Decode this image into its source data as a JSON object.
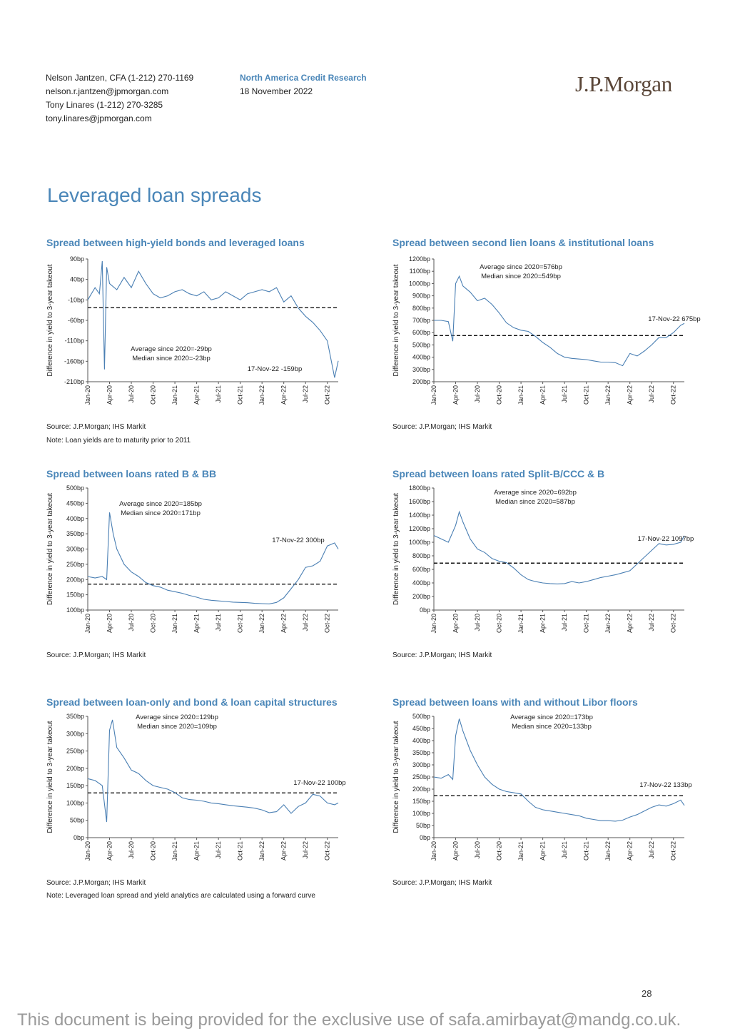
{
  "header": {
    "authors": [
      "Nelson Jantzen, CFA (1-212) 270-1169",
      "nelson.r.jantzen@jpmorgan.com",
      "Tony Linares (1-212) 270-3285",
      "tony.linares@jpmorgan.com"
    ],
    "department": "North America Credit Research",
    "date": "18 November 2022",
    "logo_text": "J.P.Morgan"
  },
  "section_title": "Leveraged loan spreads",
  "page_number": "28",
  "footer_text": "This document is being provided for the exclusive use of safa.amirbayat@mandg.co.uk.",
  "colors": {
    "accent": "#4a86b8",
    "line": "#4a7fb3",
    "logo": "#5a4638",
    "footer": "#9a9a9a"
  },
  "chart_data": [
    {
      "type": "line",
      "title": "Spread between high-yield bonds and leveraged loans",
      "ylabel": "Difference in yield to 3-year takeout",
      "ylim": [
        -210,
        90
      ],
      "yticks": [
        90,
        40,
        -10,
        -60,
        -110,
        -160,
        -210
      ],
      "ytick_labels": [
        "90bp",
        "40bp",
        "-10bp",
        "-60bp",
        "-110bp",
        "-160bp",
        "-210bp"
      ],
      "xticks": [
        "Jan-20",
        "Apr-20",
        "Jul-20",
        "Oct-20",
        "Jan-21",
        "Apr-21",
        "Jul-21",
        "Oct-21",
        "Jan-22",
        "Apr-22",
        "Jul-22",
        "Oct-22"
      ],
      "x": [
        0,
        1,
        1.6,
        2,
        2.3,
        2.6,
        3,
        4,
        5,
        6,
        7,
        8,
        9,
        10,
        11,
        12,
        13,
        14,
        15,
        16,
        17,
        18,
        19,
        20,
        21,
        22,
        23,
        24,
        25,
        26,
        27,
        28,
        29,
        30,
        31,
        32,
        33,
        34,
        34.5
      ],
      "y": [
        -10,
        20,
        5,
        85,
        -180,
        70,
        30,
        15,
        45,
        20,
        60,
        30,
        5,
        -5,
        0,
        10,
        15,
        5,
        0,
        10,
        -10,
        -5,
        10,
        0,
        -10,
        5,
        10,
        15,
        10,
        20,
        -15,
        0,
        -30,
        -50,
        -65,
        -85,
        -110,
        -200,
        -159
      ],
      "average_line": -29,
      "annotations": [
        "Average since 2020=-29bp",
        "Median since 2020=-23bp",
        "17-Nov-22 -159bp"
      ],
      "source": "Source: J.P.Morgan; IHS Markit",
      "note": "Note: Loan yields are to maturity prior to 2011"
    },
    {
      "type": "line",
      "title": "Spread between second lien loans & institutional loans",
      "ylabel": "Difference in yield to 3-year takeout",
      "ylim": [
        200,
        1200
      ],
      "yticks": [
        1200,
        1100,
        1000,
        900,
        800,
        700,
        600,
        500,
        400,
        300,
        200
      ],
      "ytick_labels": [
        "1200bp",
        "1100bp",
        "1000bp",
        "900bp",
        "800bp",
        "700bp",
        "600bp",
        "500bp",
        "400bp",
        "300bp",
        "200bp"
      ],
      "xticks": [
        "Jan-20",
        "Apr-20",
        "Jul-20",
        "Oct-20",
        "Jan-21",
        "Apr-21",
        "Jul-21",
        "Oct-21",
        "Jan-22",
        "Apr-22",
        "Jul-22",
        "Oct-22"
      ],
      "x": [
        0,
        1,
        2,
        2.6,
        3,
        3.5,
        4,
        5,
        6,
        7,
        8,
        9,
        10,
        11,
        12,
        13,
        14,
        15,
        16,
        17,
        18,
        19,
        20,
        21,
        22,
        23,
        24,
        25,
        26,
        27,
        28,
        29,
        30,
        31,
        32,
        33,
        34,
        34.5
      ],
      "y": [
        700,
        700,
        690,
        530,
        1000,
        1060,
        980,
        930,
        860,
        880,
        830,
        760,
        680,
        640,
        620,
        610,
        570,
        520,
        480,
        430,
        400,
        390,
        385,
        380,
        370,
        360,
        360,
        355,
        330,
        430,
        410,
        450,
        500,
        560,
        560,
        600,
        660,
        675
      ],
      "average_line": 576,
      "annotations": [
        "Average since 2020=576bp",
        "Median since 2020=549bp",
        "17-Nov-22 675bp"
      ],
      "source": "Source: J.P.Morgan; IHS Markit",
      "note": ""
    },
    {
      "type": "line",
      "title": "Spread between loans rated B & BB",
      "ylabel": "Difference in yield to 3-year takeout",
      "ylim": [
        100,
        500
      ],
      "yticks": [
        500,
        450,
        400,
        350,
        300,
        250,
        200,
        150,
        100
      ],
      "ytick_labels": [
        "500bp",
        "450bp",
        "400bp",
        "350bp",
        "300bp",
        "250bp",
        "200bp",
        "150bp",
        "100bp"
      ],
      "xticks": [
        "Jan-20",
        "Apr-20",
        "Jul-20",
        "Oct-20",
        "Jan-21",
        "Apr-21",
        "Jul-21",
        "Oct-21",
        "Jan-22",
        "Apr-22",
        "Jul-22",
        "Oct-22"
      ],
      "x": [
        0,
        1,
        2,
        2.6,
        3,
        3.5,
        4,
        5,
        6,
        7,
        8,
        9,
        10,
        11,
        12,
        13,
        14,
        15,
        16,
        17,
        18,
        19,
        20,
        21,
        22,
        23,
        24,
        25,
        26,
        27,
        28,
        29,
        30,
        31,
        32,
        33,
        34,
        34.5
      ],
      "y": [
        210,
        205,
        210,
        200,
        420,
        350,
        300,
        250,
        225,
        210,
        190,
        180,
        175,
        165,
        160,
        155,
        148,
        142,
        135,
        132,
        130,
        128,
        126,
        125,
        124,
        122,
        121,
        120,
        125,
        140,
        170,
        200,
        240,
        245,
        260,
        310,
        320,
        300
      ],
      "average_line": 185,
      "annotations": [
        "Average since 2020=185bp",
        "Median since 2020=171bp",
        "17-Nov-22 300bp"
      ],
      "source": "Source: J.P.Morgan; IHS Markit",
      "note": ""
    },
    {
      "type": "line",
      "title": "Spread between loans rated Split-B/CCC & B",
      "ylabel": "Difference in yield to 3-year takeout",
      "ylim": [
        0,
        1800
      ],
      "yticks": [
        1800,
        1600,
        1400,
        1200,
        1000,
        800,
        600,
        400,
        200,
        0
      ],
      "ytick_labels": [
        "1800bp",
        "1600bp",
        "1400bp",
        "1200bp",
        "1000bp",
        "800bp",
        "600bp",
        "400bp",
        "200bp",
        "0bp"
      ],
      "xticks": [
        "Jan-20",
        "Apr-20",
        "Jul-20",
        "Oct-20",
        "Jan-21",
        "Apr-21",
        "Jul-21",
        "Oct-21",
        "Jan-22",
        "Apr-22",
        "Jul-22",
        "Oct-22"
      ],
      "x": [
        0,
        1,
        2,
        3,
        3.5,
        4,
        5,
        6,
        7,
        8,
        9,
        10,
        11,
        12,
        13,
        14,
        15,
        16,
        17,
        18,
        19,
        20,
        21,
        22,
        23,
        24,
        25,
        26,
        27,
        28,
        29,
        30,
        31,
        32,
        33,
        34,
        34.5
      ],
      "y": [
        1100,
        1050,
        1000,
        1250,
        1450,
        1300,
        1050,
        900,
        850,
        760,
        720,
        700,
        620,
        520,
        450,
        420,
        400,
        390,
        385,
        390,
        420,
        400,
        420,
        450,
        480,
        500,
        520,
        550,
        580,
        680,
        780,
        880,
        980,
        960,
        970,
        1000,
        1097
      ],
      "average_line": 692,
      "annotations": [
        "Average since 2020=692bp",
        "Median since 2020=587bp",
        "17-Nov-22 1097bp"
      ],
      "source": "Source: J.P.Morgan; IHS Markit",
      "note": ""
    },
    {
      "type": "line",
      "title": "Spread between loan-only and bond & loan capital structures",
      "ylabel": "Difference in yield to 3-year takeout",
      "ylim": [
        0,
        350
      ],
      "yticks": [
        350,
        300,
        250,
        200,
        150,
        100,
        50,
        0
      ],
      "ytick_labels": [
        "350bp",
        "300bp",
        "250bp",
        "200bp",
        "150bp",
        "100bp",
        "50bp",
        "0bp"
      ],
      "xticks": [
        "Jan-20",
        "Apr-20",
        "Jul-20",
        "Oct-20",
        "Jan-21",
        "Apr-21",
        "Jul-21",
        "Oct-21",
        "Jan-22",
        "Apr-22",
        "Jul-22",
        "Oct-22"
      ],
      "x": [
        0,
        1,
        2,
        2.6,
        3,
        3.4,
        4,
        5,
        6,
        7,
        8,
        9,
        10,
        11,
        12,
        13,
        14,
        15,
        16,
        17,
        18,
        19,
        20,
        21,
        22,
        23,
        24,
        25,
        26,
        27,
        28,
        29,
        30,
        31,
        32,
        33,
        34,
        34.5
      ],
      "y": [
        170,
        165,
        150,
        45,
        310,
        340,
        260,
        230,
        195,
        185,
        165,
        150,
        145,
        140,
        130,
        115,
        110,
        108,
        105,
        100,
        98,
        95,
        92,
        90,
        88,
        85,
        80,
        72,
        75,
        95,
        70,
        90,
        100,
        125,
        120,
        100,
        95,
        100
      ],
      "average_line": 129,
      "annotations": [
        "Average since 2020=129bp",
        "Median since 2020=109bp",
        "17-Nov-22 100bp"
      ],
      "source": "Source: J.P.Morgan; IHS Markit",
      "note": "Note: Leveraged loan spread and yield analytics are calculated using a forward curve"
    },
    {
      "type": "line",
      "title": "Spread between loans with and without Libor floors",
      "ylabel": "Difference in yield to 3-year takeout",
      "ylim": [
        0,
        500
      ],
      "yticks": [
        500,
        450,
        400,
        350,
        300,
        250,
        200,
        150,
        100,
        50,
        0
      ],
      "ytick_labels": [
        "500bp",
        "450bp",
        "400bp",
        "350bp",
        "300bp",
        "250bp",
        "200bp",
        "150bp",
        "100bp",
        "50bp",
        "0bp"
      ],
      "xticks": [
        "Jan-20",
        "Apr-20",
        "Jul-20",
        "Oct-20",
        "Jan-21",
        "Apr-21",
        "Jul-21",
        "Oct-21",
        "Jan-22",
        "Apr-22",
        "Jul-22",
        "Oct-22"
      ],
      "x": [
        0,
        1,
        2,
        2.6,
        3,
        3.5,
        4,
        5,
        6,
        7,
        8,
        9,
        10,
        11,
        12,
        13,
        14,
        15,
        16,
        17,
        18,
        19,
        20,
        21,
        22,
        23,
        24,
        25,
        26,
        27,
        28,
        29,
        30,
        31,
        32,
        33,
        34,
        34.5
      ],
      "y": [
        250,
        245,
        260,
        240,
        420,
        490,
        440,
        360,
        300,
        250,
        220,
        200,
        190,
        185,
        180,
        150,
        125,
        115,
        110,
        105,
        100,
        95,
        90,
        80,
        75,
        70,
        70,
        68,
        72,
        85,
        95,
        110,
        125,
        135,
        130,
        140,
        155,
        133
      ],
      "average_line": 173,
      "annotations": [
        "Average since 2020=173bp",
        "Median since 2020=133bp",
        "17-Nov-22 133bp"
      ],
      "source": "Source: J.P.Morgan; IHS Markit",
      "note": ""
    }
  ]
}
